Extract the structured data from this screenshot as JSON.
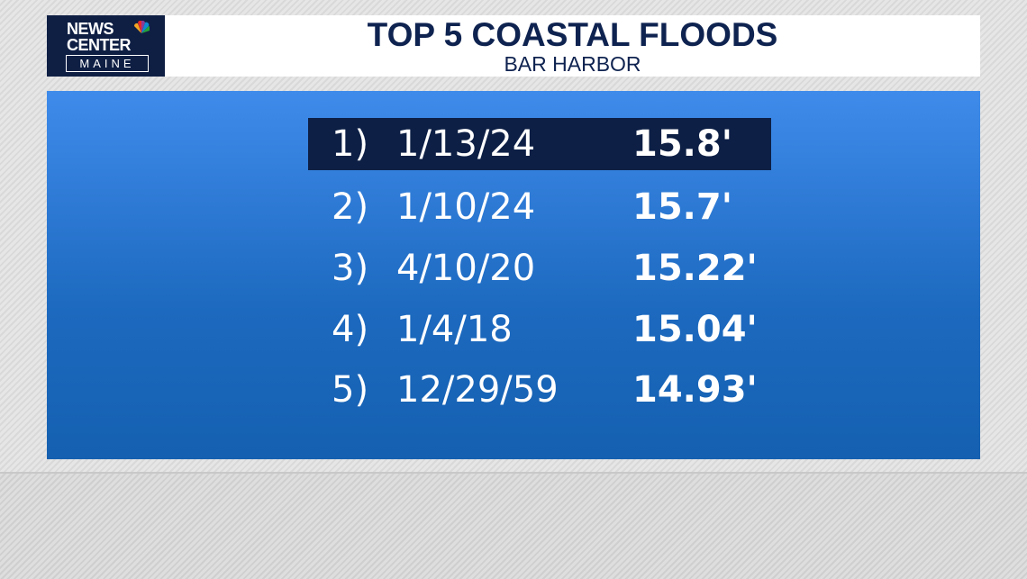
{
  "logo": {
    "line1": "NEWS",
    "line2": "CENTER",
    "line3": "MAINE"
  },
  "header": {
    "title": "TOP 5 COASTAL FLOODS",
    "subtitle": "BAR HARBOR"
  },
  "table": {
    "rows": [
      [
        "1)",
        "1/13/24",
        "15.8'"
      ],
      [
        "2)",
        "1/10/24",
        "15.7'"
      ],
      [
        "3)",
        "4/10/20",
        "15.22'"
      ],
      [
        "4)",
        "1/4/18",
        "15.04'"
      ],
      [
        "5)",
        "12/29/59",
        "14.93'"
      ]
    ]
  }
}
